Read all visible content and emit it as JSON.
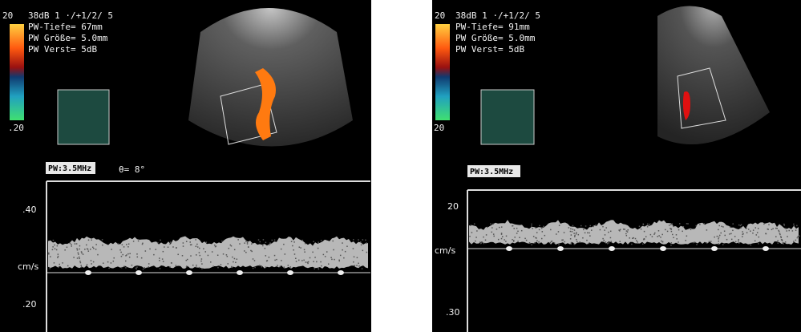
{
  "panels": [
    {
      "scale_top": "20",
      "header": [
        "38dB  1 ·/+1/2/ 5",
        "PW-Tiefe= 67mm",
        "PW Größe= 5.0mm",
        "PW Verst=   5dB"
      ],
      "scale_bottom": ".20",
      "probe": "PW:3.5MHz",
      "angle": "θ= 8°",
      "axis_labels": [
        ".40",
        "cm/s",
        ".20"
      ]
    },
    {
      "scale_top": "20",
      "header": [
        "38dB  1 ·/+1/2/ 5",
        "PW-Tiefe= 91mm",
        "PW Größe= 5.0mm",
        "PW Verst=   5dB"
      ],
      "scale_bottom": "20",
      "probe": "PW:3.5MHz",
      "axis_labels": [
        "20",
        "cm/s",
        ".30"
      ]
    }
  ]
}
